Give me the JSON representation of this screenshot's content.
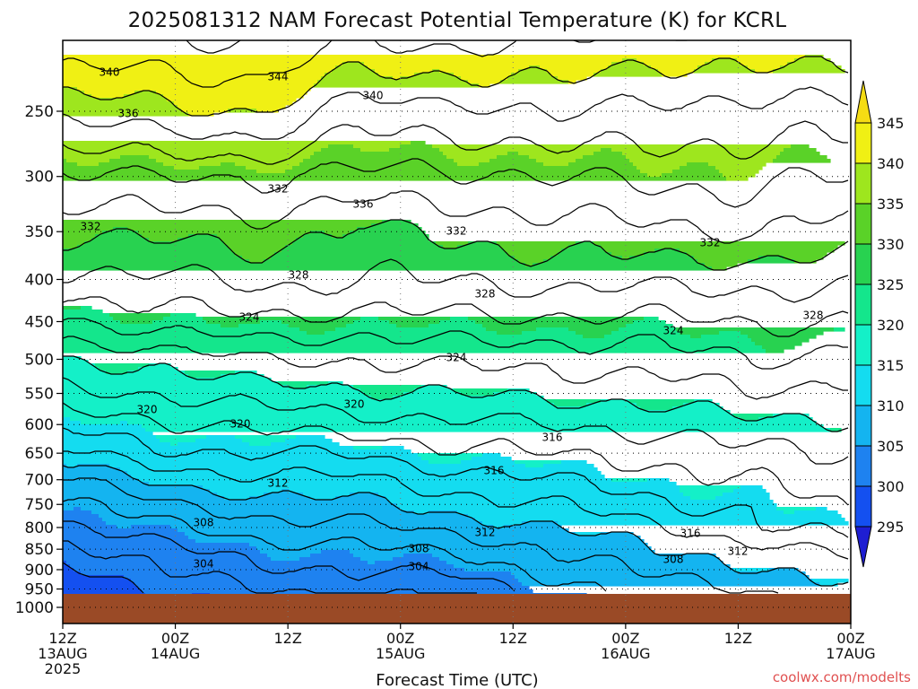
{
  "chart_data": {
    "type": "contour",
    "title": "2025081312 NAM Forecast Potential Temperature (K) for KCRL",
    "xlabel": "Forecast Time (UTC)",
    "ylabel": "",
    "y_ticks": [
      "250",
      "300",
      "350",
      "400",
      "450",
      "500",
      "550",
      "600",
      "650",
      "700",
      "750",
      "800",
      "850",
      "900",
      "950",
      "1000"
    ],
    "y_scale": "log-pressure",
    "ylim": [
      1000,
      200
    ],
    "x_ticks": [
      {
        "line1": "12Z",
        "line2": "13AUG",
        "line3": "2025"
      },
      {
        "line1": "00Z",
        "line2": "14AUG",
        "line3": ""
      },
      {
        "line1": "12Z",
        "line2": "",
        "line3": ""
      },
      {
        "line1": "00Z",
        "line2": "15AUG",
        "line3": ""
      },
      {
        "line1": "12Z",
        "line2": "",
        "line3": ""
      },
      {
        "line1": "00Z",
        "line2": "16AUG",
        "line3": ""
      },
      {
        "line1": "12Z",
        "line2": "",
        "line3": ""
      },
      {
        "line1": "00Z",
        "line2": "17AUG",
        "line3": ""
      }
    ],
    "colorbar": {
      "levels": [
        "295",
        "300",
        "305",
        "310",
        "315",
        "320",
        "325",
        "330",
        "335",
        "340",
        "345"
      ],
      "colors": [
        "#1e1ed2",
        "#1450f0",
        "#1e82f0",
        "#14b4f0",
        "#14dcf0",
        "#14f0c8",
        "#14e68c",
        "#28d250",
        "#5ad228",
        "#9ee61e",
        "#f0f014",
        "#f5dc14"
      ]
    },
    "contour_labels": [
      "340",
      "344",
      "340",
      "336",
      "332",
      "336",
      "332",
      "332",
      "332",
      "328",
      "328",
      "324",
      "328",
      "324",
      "324",
      "320",
      "320",
      "316",
      "320",
      "316",
      "312",
      "308",
      "312",
      "308",
      "304",
      "304",
      "316",
      "312",
      "308"
    ],
    "profiles": [
      {
        "hour": 0,
        "theta": [
          344.5,
          338.5,
          333.5,
          330.0,
          327.5,
          323.5,
          320.0,
          317.5,
          314.5,
          311.5,
          307.5,
          305.5,
          303.5,
          301.0,
          299.0
        ]
      },
      {
        "hour": 12,
        "theta": [
          344.0,
          339.5,
          334.0,
          330.5,
          327.5,
          325.0,
          320.5,
          318.0,
          315.5,
          313.5,
          310.5,
          307.5,
          305.5,
          303.5,
          302.0
        ]
      },
      {
        "hour": 24,
        "theta": [
          344.5,
          340.0,
          334.0,
          331.0,
          328.5,
          325.5,
          322.0,
          319.0,
          316.5,
          314.0,
          311.5,
          309.0,
          307.0,
          305.0,
          303.5
        ]
      },
      {
        "hour": 36,
        "theta": [
          342.5,
          337.0,
          333.5,
          329.5,
          328.0,
          325.0,
          322.0,
          319.5,
          317.0,
          314.0,
          311.5,
          309.5,
          307.5,
          305.5,
          304.0
        ]
      },
      {
        "hour": 48,
        "theta": [
          343.0,
          337.0,
          333.5,
          330.5,
          328.0,
          325.5,
          322.5,
          320.0,
          317.5,
          315.5,
          313.0,
          311.0,
          308.5,
          306.5,
          304.5
        ]
      },
      {
        "hour": 60,
        "theta": [
          342.5,
          338.5,
          334.0,
          331.0,
          328.5,
          325.5,
          322.5,
          320.5,
          318.0,
          316.0,
          314.0,
          312.0,
          310.0,
          308.0,
          306.5
        ]
      },
      {
        "hour": 72,
        "theta": [
          341.5,
          337.0,
          334.5,
          331.5,
          328.5,
          325.5,
          323.0,
          320.5,
          318.5,
          316.5,
          315.0,
          313.5,
          311.5,
          310.0,
          308.5
        ]
      },
      {
        "hour": 84,
        "theta": [
          342.0,
          337.5,
          334.5,
          332.0,
          328.5,
          326.0,
          324.0,
          322.0,
          319.5,
          317.5,
          316.0,
          314.5,
          313.5,
          311.0,
          309.5
        ]
      },
      {
        "hour": 96,
        "theta": [
          342.0,
          337.0,
          334.0,
          331.0,
          328.5,
          326.0,
          323.0,
          321.0,
          319.5,
          318.0,
          317.5,
          316.5,
          315.0,
          312.5,
          311.0
        ]
      }
    ],
    "profile_levels_hpa": [
      200,
      250,
      300,
      350,
      400,
      450,
      500,
      550,
      600,
      650,
      700,
      750,
      800,
      850,
      900
    ],
    "grid": true
  },
  "watermark": "coolwx.com/modelts"
}
